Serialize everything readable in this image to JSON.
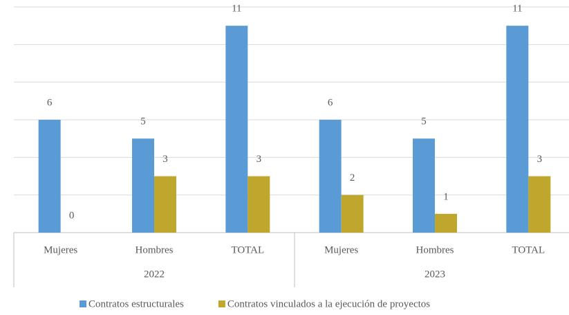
{
  "chart_data": {
    "type": "bar",
    "groups": [
      {
        "name": "2022",
        "categories": [
          "Mujeres",
          "Hombres",
          "TOTAL"
        ]
      },
      {
        "name": "2023",
        "categories": [
          "Mujeres",
          "Hombres",
          "TOTAL"
        ]
      }
    ],
    "series": [
      {
        "name": "Contratos estructurales",
        "color": "#5b9bd5",
        "values": [
          6,
          5,
          11,
          6,
          5,
          11
        ]
      },
      {
        "name": "Contratos vinculados a la ejecución de proyectos",
        "color": "#bfa62c",
        "values": [
          0,
          3,
          3,
          2,
          1,
          3
        ]
      }
    ],
    "ylim": [
      0,
      12
    ],
    "yticks": [
      0,
      2,
      4,
      6,
      8,
      10,
      12
    ],
    "grid": true,
    "legend": "bottom"
  }
}
